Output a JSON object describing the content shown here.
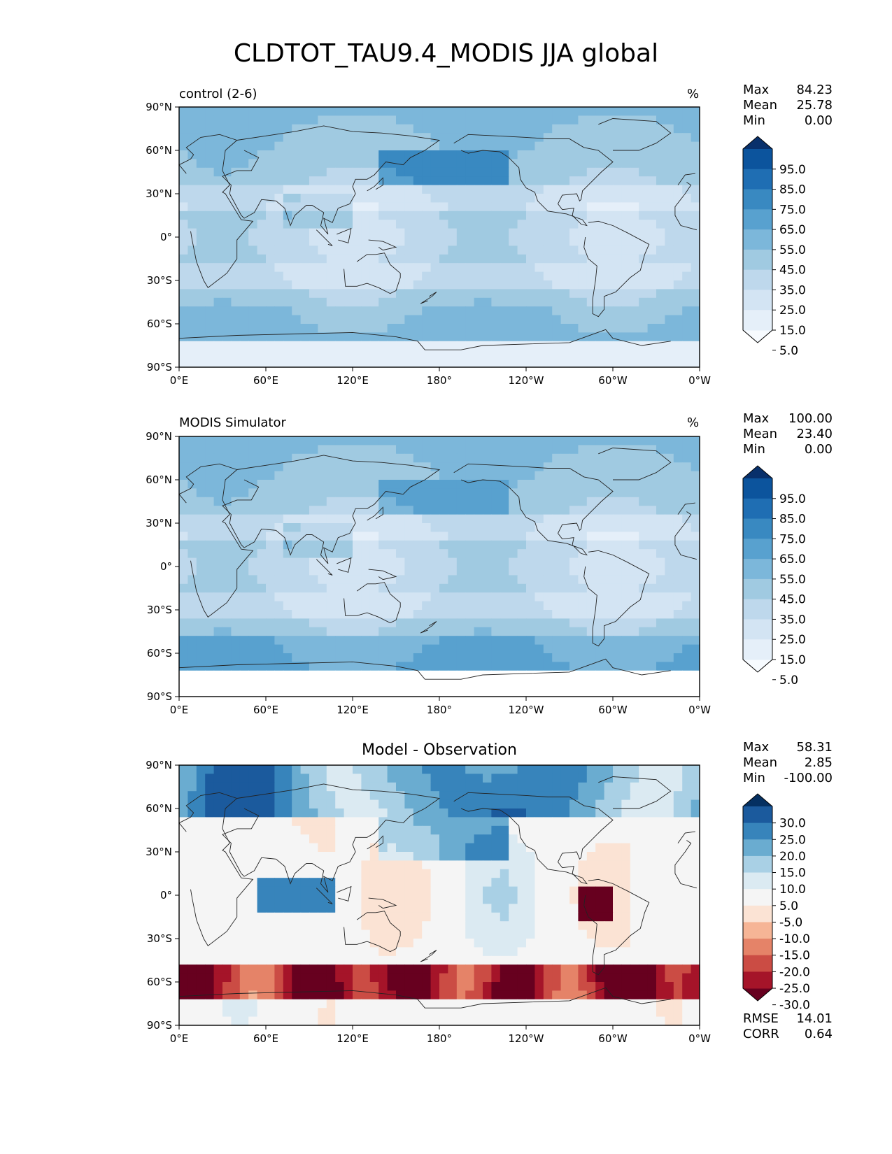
{
  "title": "CLDTOT_TAU9.4_MODIS JJA global",
  "lon_ticks": [
    "0°E",
    "60°E",
    "120°E",
    "180°",
    "120°W",
    "60°W",
    "0°W"
  ],
  "lat_ticks": [
    "90°N",
    "60°N",
    "30°N",
    "0°",
    "30°S",
    "60°S",
    "90°S"
  ],
  "panels": [
    {
      "left_label": "control (2-6)",
      "center_label": "",
      "unit": "%",
      "stats": {
        "max_label": "Max",
        "max": "84.23",
        "mean_label": "Mean",
        "mean": "25.78",
        "min_label": "Min",
        "min": "0.00"
      },
      "colorbar_levels": [
        "95.0",
        "85.0",
        "75.0",
        "65.0",
        "55.0",
        "45.0",
        "35.0",
        "25.0",
        "15.0",
        "5.0"
      ],
      "colors": [
        "#f7fbff",
        "#e5eff9",
        "#d3e4f3",
        "#bed8ec",
        "#a0cae1",
        "#7cb7da",
        "#58a1cf",
        "#3989c1",
        "#1f6eb3",
        "#0c549d",
        "#08306b"
      ]
    },
    {
      "left_label": "MODIS Simulator",
      "center_label": "",
      "unit": "%",
      "stats": {
        "max_label": "Max",
        "max": "100.00",
        "mean_label": "Mean",
        "mean": "23.40",
        "min_label": "Min",
        "min": "0.00"
      },
      "colorbar_levels": [
        "95.0",
        "85.0",
        "75.0",
        "65.0",
        "55.0",
        "45.0",
        "35.0",
        "25.0",
        "15.0",
        "5.0"
      ],
      "colors": [
        "#f7fbff",
        "#e5eff9",
        "#d3e4f3",
        "#bed8ec",
        "#a0cae1",
        "#7cb7da",
        "#58a1cf",
        "#3989c1",
        "#1f6eb3",
        "#0c549d",
        "#08306b"
      ]
    },
    {
      "left_label": "",
      "center_label": "Model - Observation",
      "unit": "",
      "stats": {
        "max_label": "Max",
        "max": "58.31",
        "mean_label": "Mean",
        "mean": "2.85",
        "min_label": "Min",
        "min": "-100.00"
      },
      "colorbar_levels": [
        "30.0",
        "25.0",
        "20.0",
        "15.0",
        "10.0",
        "5.0",
        "-5.0",
        "-10.0",
        "-15.0",
        "-20.0",
        "-25.0",
        "-30.0"
      ],
      "colors": [
        "#67001f",
        "#a51429",
        "#cb4c44",
        "#e58368",
        "#f6b596",
        "#fbe3d4",
        "#f5f5f5",
        "#dbeaf2",
        "#a9d0e5",
        "#6aacd0",
        "#3784bb",
        "#1b5a9d",
        "#053061"
      ],
      "metrics": {
        "rmse_label": "RMSE",
        "rmse": "14.01",
        "corr_label": "CORR",
        "corr": "0.64"
      }
    }
  ],
  "chart_data": [
    {
      "type": "heatmap",
      "title": "control (2-6)",
      "unit": "%",
      "x_axis": "longitude",
      "xlim": [
        0,
        360
      ],
      "ylim": [
        -90,
        90
      ],
      "stats": {
        "max": 84.23,
        "mean": 25.78,
        "min": 0.0
      },
      "levels": [
        5,
        15,
        25,
        35,
        45,
        55,
        65,
        75,
        85,
        95
      ],
      "extend": "both"
    },
    {
      "type": "heatmap",
      "title": "MODIS Simulator",
      "unit": "%",
      "xlim": [
        0,
        360
      ],
      "ylim": [
        -90,
        90
      ],
      "stats": {
        "max": 100.0,
        "mean": 23.4,
        "min": 0.0
      },
      "levels": [
        5,
        15,
        25,
        35,
        45,
        55,
        65,
        75,
        85,
        95
      ],
      "extend": "both"
    },
    {
      "type": "heatmap",
      "title": "Model - Observation",
      "xlim": [
        0,
        360
      ],
      "ylim": [
        -90,
        90
      ],
      "stats": {
        "max": 58.31,
        "mean": 2.85,
        "min": -100.0
      },
      "levels": [
        -30,
        -25,
        -20,
        -15,
        -10,
        -5,
        5,
        10,
        15,
        20,
        25,
        30
      ],
      "extend": "both",
      "rmse": 14.01,
      "corr": 0.64
    }
  ]
}
